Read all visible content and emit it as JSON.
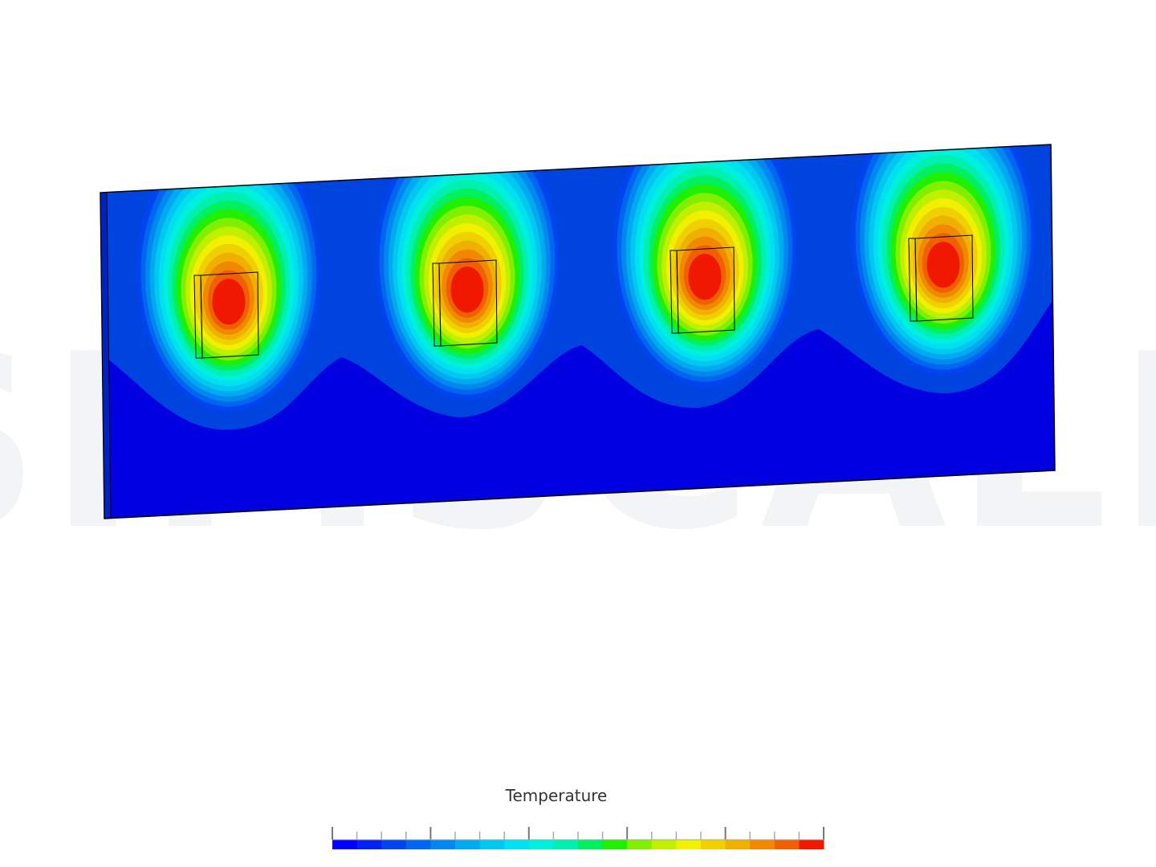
{
  "watermark": "SIMSCALE",
  "legend": {
    "title": "Temperature",
    "colors": [
      "#0000ff",
      "#0022f0",
      "#0044f0",
      "#0066f0",
      "#0088f0",
      "#00aaf0",
      "#00c8f0",
      "#00e0f0",
      "#00f0e0",
      "#00f0b0",
      "#00f060",
      "#20f000",
      "#80f000",
      "#c0f000",
      "#f0f000",
      "#f0d000",
      "#f0b000",
      "#f08800",
      "#f06000",
      "#f01800"
    ]
  }
}
